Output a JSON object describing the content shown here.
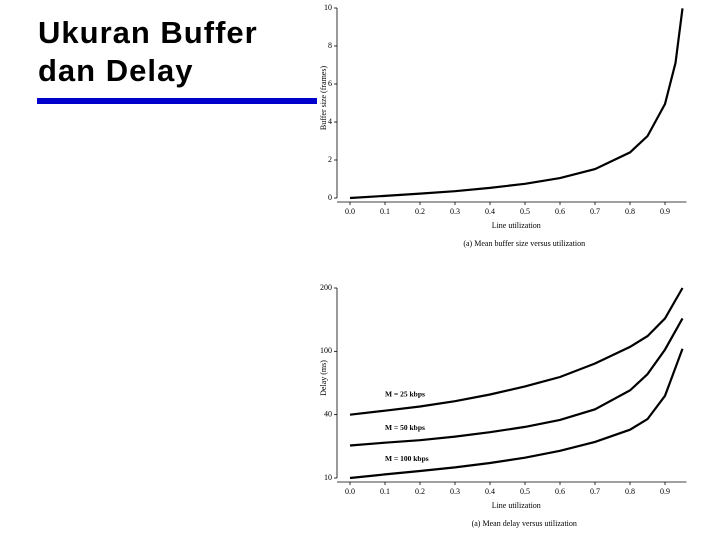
{
  "slide": {
    "title_lines": [
      "Ukuran Buffer",
      "dan Delay"
    ]
  },
  "chart_data": [
    {
      "type": "line",
      "ylabel": "Buffer size (frames)",
      "xlabel": "Line utilization",
      "caption": "(a) Mean buffer size versus utilization",
      "x": [
        0,
        0.1,
        0.2,
        0.3,
        0.4,
        0.5,
        0.6,
        0.7,
        0.8,
        0.85,
        0.9,
        0.93,
        0.95
      ],
      "series": [
        {
          "color": "#000000",
          "values": [
            0,
            0.11,
            0.23,
            0.36,
            0.53,
            0.75,
            1.05,
            1.52,
            2.4,
            3.26,
            4.95,
            7.11,
            9.98
          ]
        }
      ],
      "xlim": [
        0,
        0.95
      ],
      "ylim": [
        0,
        10
      ],
      "xticks": [
        {
          "value": 0,
          "label": "0.0"
        },
        0.1,
        0.2,
        0.3,
        0.4,
        0.5,
        0.6,
        0.7,
        0.8,
        0.9
      ],
      "yticks": [
        0,
        2,
        4,
        6,
        8,
        10
      ]
    },
    {
      "type": "line",
      "ylabel": "Delay (ms)",
      "xlabel": "Line utilization",
      "caption": "(a) Mean delay versus utilization",
      "x": [
        0,
        0.1,
        0.2,
        0.3,
        0.4,
        0.5,
        0.6,
        0.7,
        0.8,
        0.85,
        0.9,
        0.95
      ],
      "series": [
        {
          "name": "M = 25 kbps",
          "color": "#000000",
          "values": [
            40,
            43.8,
            47.7,
            52.8,
            59.1,
            66.8,
            75.7,
            88.5,
            107,
            124,
            152,
            200
          ]
        },
        {
          "name": "M = 50 kbps",
          "color": "#000000",
          "values": [
            25.4,
            26.7,
            27.9,
            29.6,
            31.7,
            34.2,
            37.5,
            45.1,
            63,
            78.3,
            102.8,
            152
          ]
        },
        {
          "name": "M = 100 kbps",
          "color": "#000000",
          "values": [
            10,
            11.7,
            13.3,
            15,
            17.1,
            19.6,
            22.9,
            27.1,
            32.9,
            37.9,
            57.9,
            104
          ]
        }
      ],
      "xlim": [
        0,
        0.95
      ],
      "ylim": [
        10,
        200
      ],
      "xticks": [
        {
          "value": 0,
          "label": "0.0"
        },
        0.1,
        0.2,
        0.3,
        0.4,
        0.5,
        0.6,
        0.7,
        0.8,
        0.9
      ],
      "yticks": [
        10,
        40,
        100,
        200
      ]
    }
  ]
}
